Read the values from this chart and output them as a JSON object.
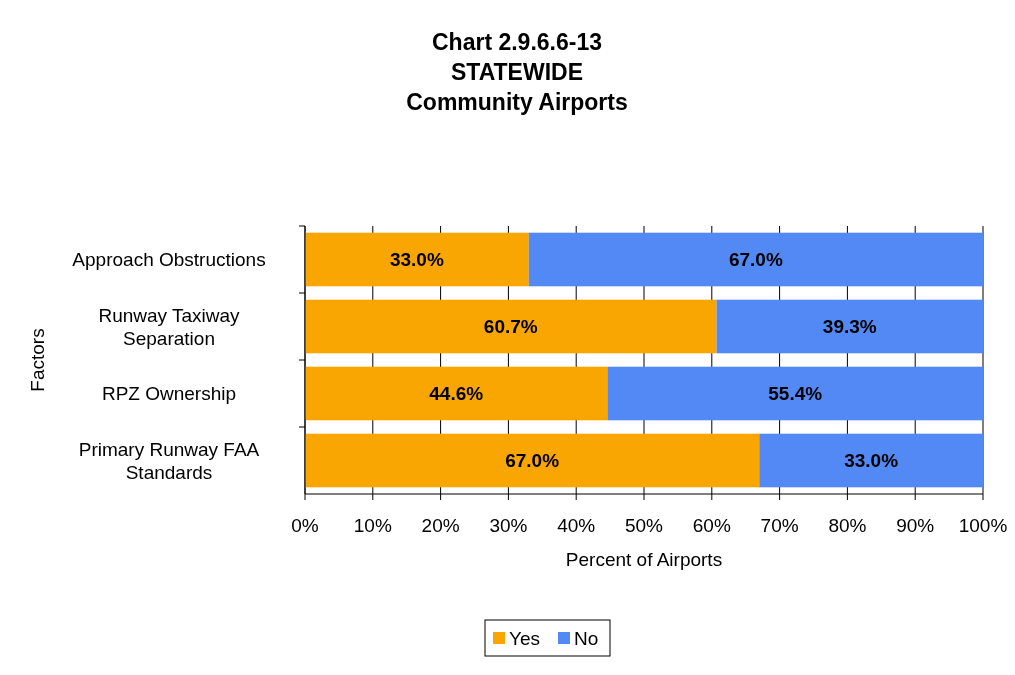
{
  "chart_data": {
    "type": "bar",
    "orientation": "horizontal",
    "stacked": true,
    "title": "Chart 2.9.6.6-13\nSTATEWIDE\nCommunity Airports",
    "xlabel": "Percent of Airports",
    "ylabel": "Factors",
    "categories": [
      "Approach Obstructions",
      "Runway Taxiway Separation",
      "RPZ Ownership",
      "Primary Runway FAA Standards"
    ],
    "series": [
      {
        "name": "Yes",
        "color": "#f9a602",
        "values": [
          33,
          60.7,
          44.6,
          67
        ],
        "value_labels": [
          "33.0%",
          "60.7%",
          "44.6%",
          "67.0%"
        ]
      },
      {
        "name": "No",
        "color": "#5389f5",
        "values": [
          67,
          39.3,
          55.4,
          33
        ],
        "value_labels": [
          "67.0%",
          "39.3%",
          "55.4%",
          "33.0%"
        ]
      }
    ],
    "xlim": [
      0,
      100
    ],
    "xticks": [
      {
        "value": 0,
        "label": "0%"
      },
      {
        "value": 10,
        "label": "10%"
      },
      {
        "value": 20,
        "label": "20%"
      },
      {
        "value": 30,
        "label": "30%"
      },
      {
        "value": 40,
        "label": "40%"
      },
      {
        "value": 50,
        "label": "50%"
      },
      {
        "value": 60,
        "label": "60%"
      },
      {
        "value": 70,
        "label": "70%"
      },
      {
        "value": 80,
        "label": "80%"
      },
      {
        "value": 90,
        "label": "90%"
      },
      {
        "value": 100,
        "label": "100%"
      }
    ],
    "grid": "x",
    "legend": "bottom"
  }
}
